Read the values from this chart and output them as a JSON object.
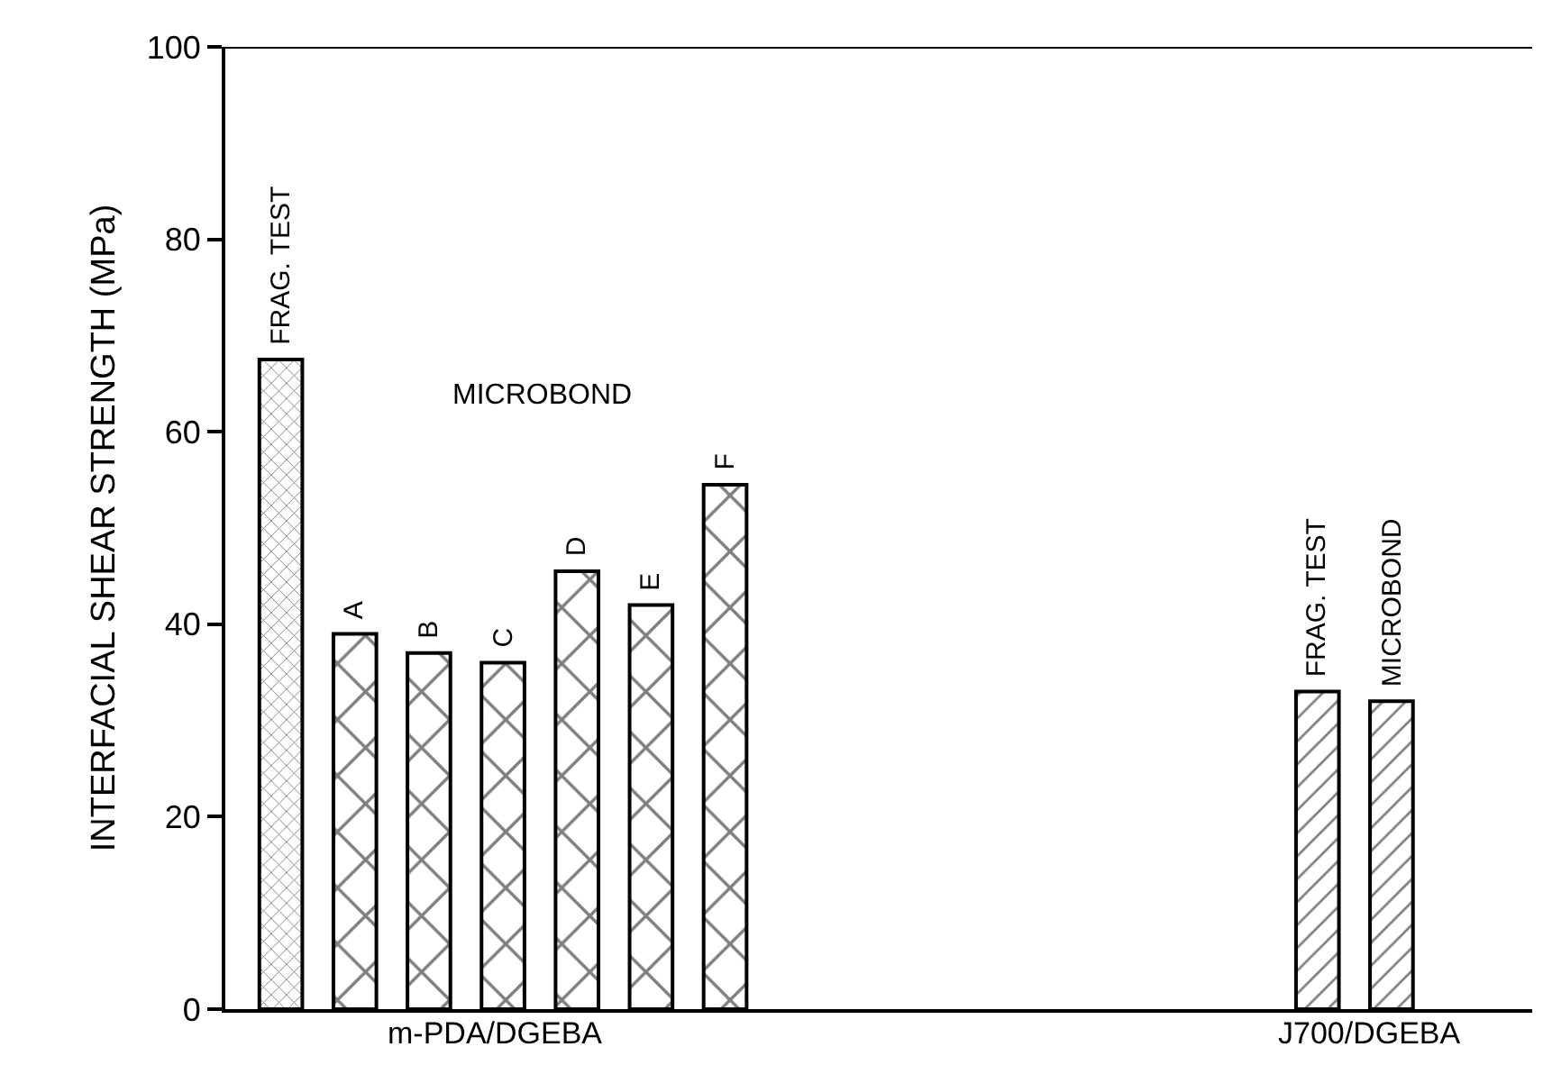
{
  "chart_data": {
    "type": "bar",
    "ylabel": "INTERFACIAL SHEAR STRENGTH (MPa)",
    "categories": [
      "FRAG. TEST",
      "A",
      "B",
      "C",
      "D",
      "E",
      "F",
      null,
      null,
      null,
      null,
      null,
      null,
      null,
      "FRAG. TEST",
      "MICROBOND"
    ],
    "series": [
      {
        "color": "#000000",
        "values": [
          67.5,
          null,
          null,
          null,
          null,
          null,
          null,
          null,
          null,
          null,
          null,
          null,
          null,
          null,
          null,
          null
        ]
      },
      {
        "color": "#000000",
        "values": [
          null,
          39,
          37,
          36,
          45.5,
          42,
          54.5,
          null,
          null,
          null,
          null,
          null,
          null,
          null,
          null,
          null
        ]
      },
      {
        "color": "#000000",
        "values": [
          null,
          null,
          null,
          null,
          null,
          null,
          null,
          null,
          null,
          null,
          null,
          null,
          null,
          null,
          33,
          32
        ]
      }
    ],
    "ylim": [
      0,
      100
    ],
    "yticks": [
      0,
      20,
      40,
      60,
      80,
      100
    ],
    "annotations": [
      "MICROBOND",
      "m-PDA/DGEBA",
      "J700/DGEBA"
    ]
  }
}
